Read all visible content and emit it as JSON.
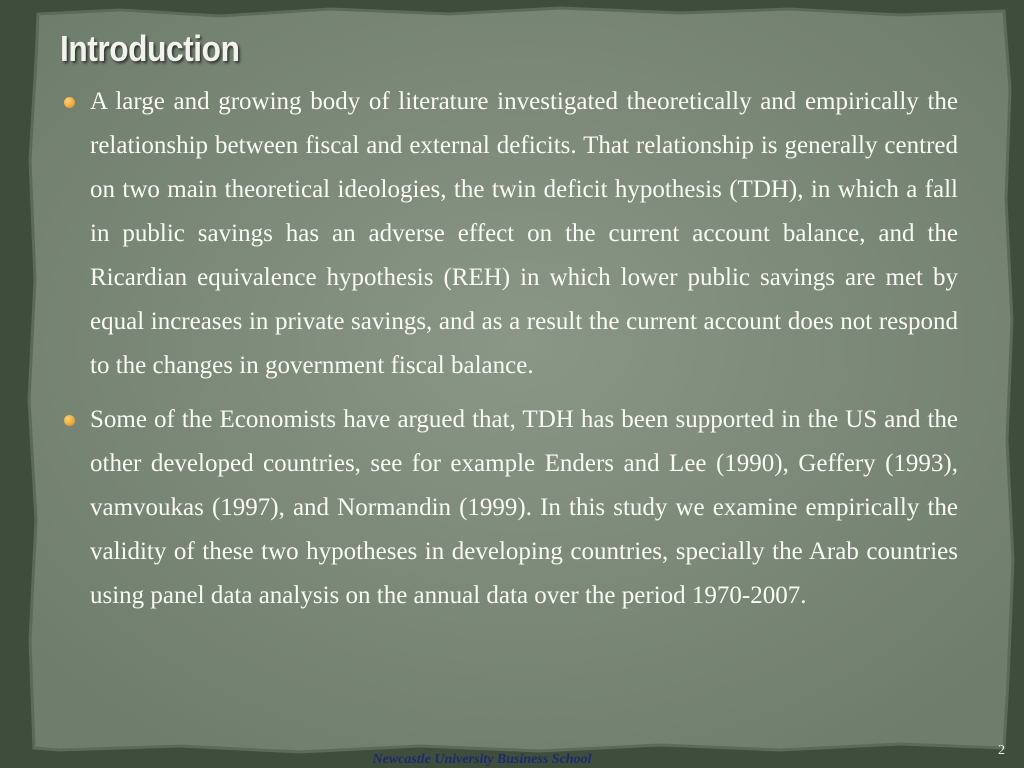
{
  "title": "Introduction",
  "bullets": [
    "A large and growing body of literature investigated theoretically and empirically the relationship between fiscal and external deficits. That relationship is generally centred on two main theoretical ideologies, the twin deficit hypothesis (TDH), in which a fall in public savings has an adverse effect on the current account balance, and the Ricardian equivalence hypothesis (REH) in which lower public savings are met by equal increases in private savings, and as a result the current account does not respond to the changes in government fiscal balance.",
    "Some of the Economists have argued that, TDH has been supported in the US and the other developed countries, see for example Enders and Lee (1990), Geffery (1993), vamvoukas (1997), and Normandin (1999). In this study we examine empirically the validity of these two hypotheses in developing countries, specially the Arab countries using panel data analysis on the annual data over the period 1970-2007."
  ],
  "footer": "Newcastle University Business School",
  "page_number": "2"
}
